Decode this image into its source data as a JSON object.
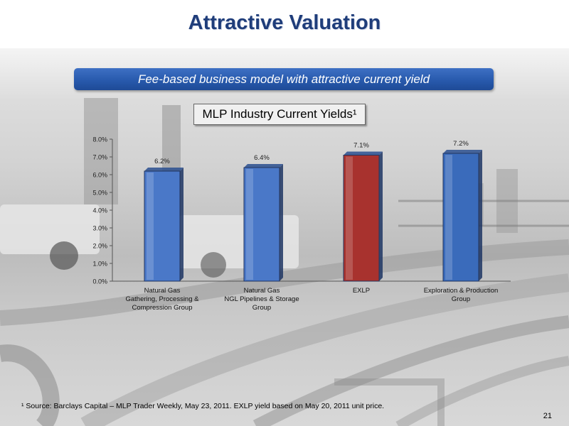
{
  "page": {
    "title": "Attractive Valuation",
    "banner": "Fee-based business model with attractive current yield",
    "footnote": "¹ Source: Barclays Capital – MLP Trader Weekly, May 23, 2011. EXLP yield based on May 20, 2011 unit price.",
    "page_number": "21"
  },
  "chart_data": {
    "type": "bar",
    "title": "MLP Industry Current Yields¹",
    "categories": [
      [
        "Natural Gas",
        "Gathering, Processing &",
        "Compression Group"
      ],
      [
        "Natural Gas",
        "NGL Pipelines & Storage",
        "Group"
      ],
      [
        "EXLP"
      ],
      [
        "Exploration & Production",
        "Group"
      ]
    ],
    "values": [
      6.2,
      6.4,
      7.1,
      7.2
    ],
    "value_labels": [
      "6.2%",
      "6.4%",
      "7.1%",
      "7.2%"
    ],
    "bar_colors": [
      "#4a78c8",
      "#4a78c8",
      "#a8322e",
      "#3a6bbb"
    ],
    "y_ticks": [
      "0.0%",
      "1.0%",
      "2.0%",
      "3.0%",
      "4.0%",
      "5.0%",
      "6.0%",
      "7.0%",
      "8.0%"
    ],
    "ylim": [
      0,
      8
    ],
    "xlabel": "",
    "ylabel": "",
    "grid": false,
    "legend": false
  }
}
